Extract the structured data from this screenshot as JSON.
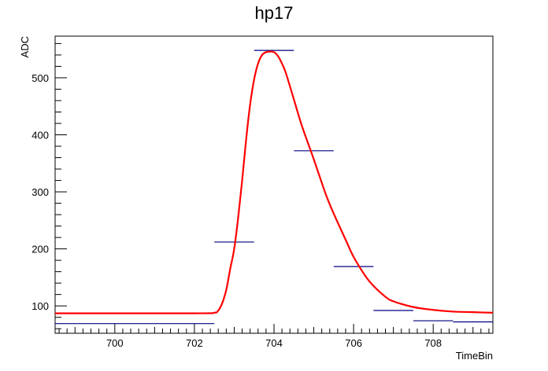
{
  "chart_data": {
    "type": "line",
    "title": "hp17",
    "xlabel": "TimeBin",
    "ylabel": "ADC",
    "xlim": [
      698.5,
      709.5
    ],
    "ylim": [
      52,
      573
    ],
    "x_major_ticks": [
      700,
      702,
      704,
      706,
      708
    ],
    "y_major_ticks": [
      100,
      200,
      300,
      400,
      500
    ],
    "histogram": {
      "color": "#000080",
      "bins": [
        {
          "x_low": 698.5,
          "x_high": 702.5,
          "value": 69
        },
        {
          "x_low": 702.5,
          "x_high": 703.5,
          "value": 212
        },
        {
          "x_low": 703.5,
          "x_high": 704.5,
          "value": 548
        },
        {
          "x_low": 704.5,
          "x_high": 705.5,
          "value": 372
        },
        {
          "x_low": 705.5,
          "x_high": 706.5,
          "value": 169
        },
        {
          "x_low": 706.5,
          "x_high": 707.5,
          "value": 92
        },
        {
          "x_low": 707.5,
          "x_high": 708.5,
          "value": 74
        },
        {
          "x_low": 708.5,
          "x_high": 709.5,
          "value": 72
        }
      ]
    },
    "fit": {
      "color": "#ff0000",
      "x": [
        698.5,
        702.0,
        702.5,
        702.6,
        702.7,
        702.8,
        702.9,
        703.0,
        703.1,
        703.2,
        703.3,
        703.4,
        703.5,
        703.6,
        703.7,
        703.8,
        703.9,
        704.0,
        704.1,
        704.2,
        704.3,
        704.5,
        704.7,
        705.0,
        705.3,
        705.5,
        705.8,
        706.0,
        706.3,
        706.5,
        706.8,
        707.0,
        707.5,
        708.0,
        708.5,
        709.0,
        709.5
      ],
      "y": [
        87,
        87,
        88,
        92,
        105,
        128,
        165,
        200,
        255,
        320,
        392,
        453,
        497,
        525,
        540,
        545,
        546,
        545,
        538,
        525,
        508,
        462,
        416,
        357,
        296,
        262,
        216,
        186,
        152,
        135,
        116,
        108,
        98,
        93,
        90,
        89,
        88
      ]
    }
  }
}
